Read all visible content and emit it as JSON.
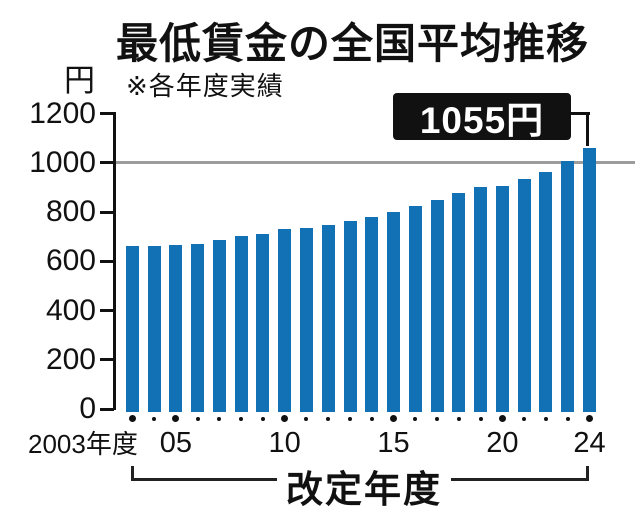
{
  "chart_data": {
    "type": "bar",
    "title": "最低賃金の全国平均推移",
    "note": "※各年度実績",
    "ylabel": "円",
    "xlabel": "改定年度",
    "ylim": [
      0,
      1200
    ],
    "y_ticks": [
      0,
      200,
      400,
      600,
      800,
      1000,
      1200
    ],
    "gridline_y": 1000,
    "grid": "single horizontal reference line at 1000",
    "legend_position": "none",
    "categories": [
      2003,
      2004,
      2005,
      2006,
      2007,
      2008,
      2009,
      2010,
      2011,
      2012,
      2013,
      2014,
      2015,
      2016,
      2017,
      2018,
      2019,
      2020,
      2021,
      2022,
      2023,
      2024
    ],
    "values": [
      664,
      665,
      668,
      673,
      687,
      703,
      713,
      730,
      737,
      749,
      764,
      780,
      798,
      823,
      848,
      874,
      901,
      902,
      930,
      961,
      1004,
      1055
    ],
    "x_tick_marks": [
      {
        "index": 0,
        "label": "2003年度"
      },
      {
        "index": 2,
        "label": "05"
      },
      {
        "index": 7,
        "label": "10"
      },
      {
        "index": 12,
        "label": "15"
      },
      {
        "index": 17,
        "label": "20"
      },
      {
        "index": 21,
        "label": "24"
      }
    ],
    "annotation": {
      "text": "1055円",
      "target_index": 21
    },
    "colors": {
      "bar": "#1271b4",
      "gridline": "#9c9c9c",
      "ink": "#111111",
      "callout_bg": "#111111",
      "callout_text": "#ffffff"
    }
  }
}
